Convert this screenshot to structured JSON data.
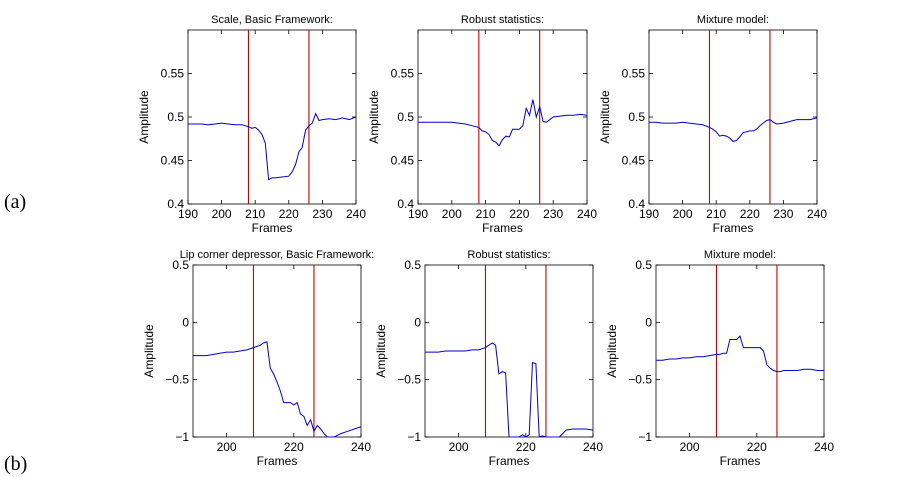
{
  "row_labels": [
    "(a)",
    "(b)"
  ],
  "chart_data": [
    {
      "type": "line",
      "title": "Scale, Basic Framework:",
      "xlabel": "Frames",
      "ylabel": "Amplitude",
      "xlim": [
        190,
        240
      ],
      "ylim": [
        0.4,
        0.6
      ],
      "xticks": [
        190,
        200,
        210,
        220,
        230,
        240
      ],
      "xtick_labels": [
        "190",
        "200",
        "210",
        "220",
        "230",
        "240"
      ],
      "yticks": [
        0.4,
        0.45,
        0.5,
        0.55
      ],
      "ytick_labels": [
        "0.4",
        "0.45",
        "0.5",
        "0.55"
      ],
      "vlines": [
        208,
        226
      ],
      "line_color": "#0000cc",
      "vline_color": "#cc0000",
      "grid": false,
      "series": [
        {
          "x": [
            190,
            192,
            194,
            196,
            198,
            200,
            202,
            204,
            206,
            207,
            208,
            209,
            210,
            211,
            212,
            213,
            214,
            215,
            216,
            218,
            220,
            221,
            222,
            223,
            224,
            225,
            226,
            227,
            228,
            229,
            230,
            232,
            234,
            236,
            238,
            240
          ],
          "y": [
            0.492,
            0.492,
            0.492,
            0.491,
            0.492,
            0.493,
            0.492,
            0.491,
            0.491,
            0.49,
            0.489,
            0.487,
            0.488,
            0.485,
            0.48,
            0.47,
            0.428,
            0.43,
            0.43,
            0.431,
            0.432,
            0.437,
            0.445,
            0.46,
            0.465,
            0.485,
            0.49,
            0.493,
            0.504,
            0.496,
            0.497,
            0.498,
            0.497,
            0.499,
            0.497,
            0.5
          ]
        }
      ]
    },
    {
      "type": "line",
      "title": "Robust statistics:",
      "xlabel": "Frames",
      "ylabel": "Amplitude",
      "xlim": [
        190,
        240
      ],
      "ylim": [
        0.4,
        0.6
      ],
      "xticks": [
        190,
        200,
        210,
        220,
        230,
        240
      ],
      "xtick_labels": [
        "190",
        "200",
        "210",
        "220",
        "230",
        "240"
      ],
      "yticks": [
        0.4,
        0.45,
        0.5,
        0.55
      ],
      "ytick_labels": [
        "0.4",
        "0.45",
        "0.5",
        "0.55"
      ],
      "vlines": [
        208,
        226
      ],
      "line_color": "#0000cc",
      "vline_color": "#cc0000",
      "grid": false,
      "series": [
        {
          "x": [
            190,
            192,
            194,
            196,
            198,
            200,
            202,
            204,
            206,
            208,
            209,
            210,
            211,
            212,
            213,
            214,
            215,
            216,
            217,
            218,
            219,
            220,
            221,
            222,
            223,
            224,
            225,
            226,
            227,
            228,
            230,
            232,
            234,
            236,
            238,
            240
          ],
          "y": [
            0.494,
            0.494,
            0.494,
            0.494,
            0.494,
            0.494,
            0.493,
            0.492,
            0.49,
            0.488,
            0.484,
            0.483,
            0.48,
            0.473,
            0.471,
            0.467,
            0.474,
            0.478,
            0.477,
            0.486,
            0.486,
            0.486,
            0.49,
            0.51,
            0.502,
            0.52,
            0.5,
            0.512,
            0.495,
            0.494,
            0.5,
            0.501,
            0.502,
            0.502,
            0.503,
            0.502
          ]
        }
      ]
    },
    {
      "type": "line",
      "title": "Mixture model:",
      "xlabel": "Frames",
      "ylabel": "Amplitude",
      "xlim": [
        190,
        240
      ],
      "ylim": [
        0.4,
        0.6
      ],
      "xticks": [
        190,
        200,
        210,
        220,
        230,
        240
      ],
      "xtick_labels": [
        "190",
        "200",
        "210",
        "220",
        "230",
        "240"
      ],
      "yticks": [
        0.4,
        0.45,
        0.5,
        0.55
      ],
      "ytick_labels": [
        "0.4",
        "0.45",
        "0.5",
        "0.55"
      ],
      "vlines": [
        208,
        226
      ],
      "line_color": "#0000cc",
      "vline_color": "#cc0000",
      "grid": false,
      "series": [
        {
          "x": [
            190,
            192,
            194,
            196,
            198,
            200,
            202,
            204,
            206,
            208,
            209,
            210,
            211,
            212,
            213,
            214,
            215,
            216,
            217,
            218,
            219,
            220,
            221,
            222,
            223,
            224,
            225,
            226,
            227,
            228,
            230,
            232,
            234,
            236,
            238,
            240
          ],
          "y": [
            0.494,
            0.494,
            0.493,
            0.493,
            0.493,
            0.494,
            0.493,
            0.492,
            0.491,
            0.488,
            0.486,
            0.483,
            0.478,
            0.479,
            0.478,
            0.476,
            0.472,
            0.473,
            0.477,
            0.482,
            0.483,
            0.484,
            0.484,
            0.486,
            0.49,
            0.493,
            0.496,
            0.497,
            0.494,
            0.492,
            0.493,
            0.495,
            0.497,
            0.497,
            0.497,
            0.499
          ]
        }
      ]
    },
    {
      "type": "line",
      "title": "Lip corner depressor, Basic Framework:",
      "xlabel": "Frames",
      "ylabel": "Amplitude",
      "xlim": [
        190,
        240
      ],
      "ylim": [
        -1,
        0.5
      ],
      "xticks": [
        200,
        220,
        240
      ],
      "xtick_labels": [
        "200",
        "220",
        "240"
      ],
      "yticks": [
        -1,
        -0.5,
        0,
        0.5
      ],
      "ytick_labels": [
        "−1",
        "−0.5",
        "0",
        "0.5"
      ],
      "vlines": [
        208,
        226
      ],
      "line_color": "#0000cc",
      "vline_color": "#cc0000",
      "grid": false,
      "series": [
        {
          "x": [
            190,
            192,
            194,
            196,
            198,
            200,
            202,
            204,
            206,
            208,
            209,
            210,
            211,
            212,
            213,
            214,
            215,
            216,
            217,
            218,
            219,
            220,
            221,
            222,
            223,
            224,
            225,
            226,
            227,
            228,
            229,
            230,
            232,
            234,
            236,
            238,
            240
          ],
          "y": [
            -0.29,
            -0.29,
            -0.29,
            -0.28,
            -0.27,
            -0.26,
            -0.26,
            -0.25,
            -0.24,
            -0.22,
            -0.21,
            -0.2,
            -0.18,
            -0.17,
            -0.4,
            -0.45,
            -0.52,
            -0.6,
            -0.7,
            -0.7,
            -0.7,
            -0.72,
            -0.7,
            -0.8,
            -0.82,
            -0.9,
            -0.85,
            -0.95,
            -0.9,
            -0.93,
            -0.97,
            -1.0,
            -1.0,
            -0.97,
            -0.95,
            -0.93,
            -0.91
          ]
        }
      ]
    },
    {
      "type": "line",
      "title": "Robust statistics:",
      "xlabel": "Frames",
      "ylabel": "Amplitude",
      "xlim": [
        190,
        240
      ],
      "ylim": [
        -1,
        0.5
      ],
      "xticks": [
        200,
        220,
        240
      ],
      "xtick_labels": [
        "200",
        "220",
        "240"
      ],
      "yticks": [
        -1,
        -0.5,
        0,
        0.5
      ],
      "ytick_labels": [
        "−1",
        "−0.5",
        "0",
        "0.5"
      ],
      "vlines": [
        208,
        226
      ],
      "line_color": "#0000cc",
      "vline_color": "#cc0000",
      "grid": false,
      "series": [
        {
          "x": [
            190,
            192,
            194,
            196,
            198,
            200,
            202,
            204,
            206,
            208,
            209,
            210,
            211,
            212,
            213,
            214,
            215,
            216,
            217,
            218,
            219,
            220,
            221,
            222,
            223,
            224,
            225,
            226,
            227,
            228,
            229,
            230,
            232,
            234,
            236,
            238,
            240
          ],
          "y": [
            -0.26,
            -0.26,
            -0.26,
            -0.25,
            -0.25,
            -0.25,
            -0.25,
            -0.24,
            -0.24,
            -0.22,
            -0.2,
            -0.18,
            -0.2,
            -0.45,
            -0.43,
            -0.44,
            -1.0,
            -1.0,
            -1.0,
            -1.0,
            -0.98,
            -1.0,
            -0.98,
            -0.35,
            -0.36,
            -1.0,
            -0.99,
            -1.0,
            -1.0,
            -1.0,
            -1.0,
            -1.0,
            -0.94,
            -0.93,
            -0.93,
            -0.93,
            -0.94
          ]
        }
      ]
    },
    {
      "type": "line",
      "title": "Mixture model:",
      "xlabel": "Frames",
      "ylabel": "Amplitude",
      "xlim": [
        190,
        240
      ],
      "ylim": [
        -1,
        0.5
      ],
      "xticks": [
        200,
        220,
        240
      ],
      "xtick_labels": [
        "200",
        "220",
        "240"
      ],
      "yticks": [
        -1,
        -0.5,
        0,
        0.5
      ],
      "ytick_labels": [
        "−1",
        "−0.5",
        "0",
        "0.5"
      ],
      "vlines": [
        208,
        226
      ],
      "line_color": "#0000cc",
      "vline_color": "#cc0000",
      "grid": false,
      "series": [
        {
          "x": [
            190,
            192,
            194,
            196,
            198,
            200,
            202,
            204,
            206,
            208,
            209,
            210,
            211,
            212,
            213,
            214,
            215,
            216,
            217,
            218,
            219,
            220,
            221,
            222,
            223,
            224,
            225,
            226,
            227,
            228,
            229,
            230,
            232,
            234,
            236,
            238,
            240
          ],
          "y": [
            -0.33,
            -0.33,
            -0.32,
            -0.32,
            -0.31,
            -0.31,
            -0.3,
            -0.3,
            -0.29,
            -0.28,
            -0.28,
            -0.27,
            -0.27,
            -0.15,
            -0.15,
            -0.15,
            -0.12,
            -0.22,
            -0.22,
            -0.22,
            -0.22,
            -0.22,
            -0.22,
            -0.25,
            -0.37,
            -0.4,
            -0.42,
            -0.43,
            -0.43,
            -0.42,
            -0.42,
            -0.42,
            -0.42,
            -0.41,
            -0.41,
            -0.42,
            -0.42
          ]
        }
      ]
    }
  ]
}
